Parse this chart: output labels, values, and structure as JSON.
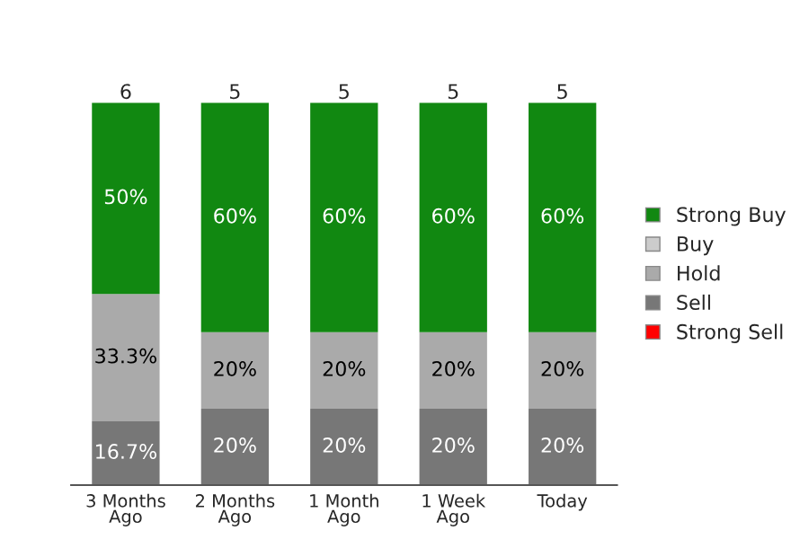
{
  "chart_data": {
    "type": "bar",
    "stacked": true,
    "categories": [
      "3 Months\nAgo",
      "2 Months\nAgo",
      "1 Month\nAgo",
      "1 Week\nAgo",
      "Today"
    ],
    "series": [
      {
        "name": "Strong Sell",
        "color": "#ff0000",
        "values": [
          null,
          null,
          null,
          null,
          null
        ]
      },
      {
        "name": "Sell",
        "color": "#777777",
        "values": [
          16.7,
          20,
          20,
          20,
          20
        ],
        "value_labels": [
          "16.7%",
          "20%",
          "20%",
          "20%",
          "20%"
        ]
      },
      {
        "name": "Hold",
        "color": "#aaaaaa",
        "values": [
          33.3,
          20,
          20,
          20,
          20
        ],
        "value_labels": [
          "33.3%",
          "20%",
          "20%",
          "20%",
          "20%"
        ]
      },
      {
        "name": "Buy",
        "color": "#cccccc",
        "values": [
          null,
          null,
          null,
          null,
          null
        ]
      },
      {
        "name": "Strong Buy",
        "color": "#118811",
        "values": [
          50,
          60,
          60,
          60,
          60
        ],
        "value_labels": [
          "50%",
          "60%",
          "60%",
          "60%",
          "60%"
        ]
      }
    ],
    "annotations": [
      "6",
      "5",
      "5",
      "5",
      "5"
    ],
    "legend": "right",
    "tick_labels": "x"
  }
}
